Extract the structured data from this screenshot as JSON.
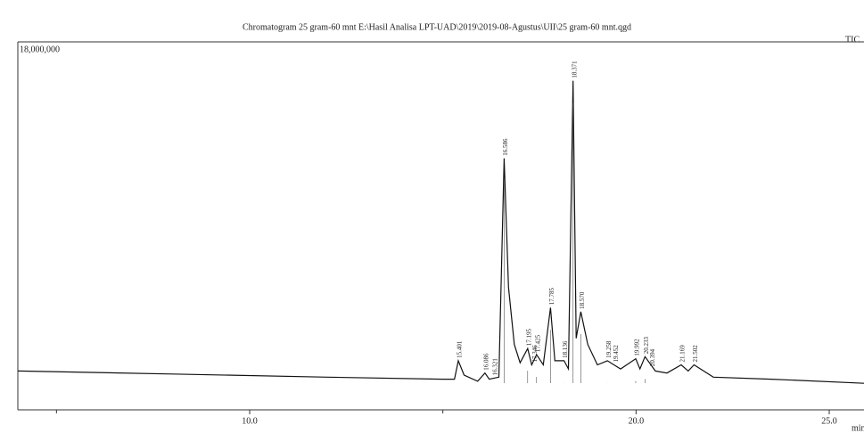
{
  "chart_data": {
    "type": "line",
    "title": "Chromatogram 25 gram-60 mnt E:\\Hasil Analisa LPT-UAD\\2019\\2019-08-Agustus\\UII\\25 gram-60 mnt.qgd",
    "series_label": "TIC",
    "x_label": "min",
    "x": [
      4.0,
      8.0,
      12.0,
      15.0,
      15.3,
      15.4,
      15.55,
      15.9,
      16.09,
      16.2,
      16.45,
      16.586,
      16.7,
      16.85,
      17.0,
      17.195,
      17.3,
      17.425,
      17.6,
      17.785,
      17.9,
      18.136,
      18.25,
      18.371,
      18.45,
      18.57,
      18.75,
      19.0,
      19.258,
      19.6,
      19.992,
      20.1,
      20.233,
      20.5,
      20.8,
      21.169,
      21.35,
      21.502,
      22.0,
      23.5,
      25.9
    ],
    "values": [
      1900000,
      1750000,
      1600000,
      1500000,
      1500000,
      2400000,
      1700000,
      1400000,
      1800000,
      1500000,
      1600000,
      12300000,
      6000000,
      3200000,
      2300000,
      3000000,
      2200000,
      2700000,
      2200000,
      5000000,
      2400000,
      2400000,
      2000000,
      16100000,
      3500000,
      4800000,
      3200000,
      2200000,
      2400000,
      2000000,
      2500000,
      2000000,
      2600000,
      1900000,
      1800000,
      2200000,
      1900000,
      2200000,
      1600000,
      1500000,
      1300000
    ],
    "color": "#111111",
    "peaks": [
      {
        "time": 15.401,
        "label": "15.401",
        "height": 2400000
      },
      {
        "time": 16.086,
        "label": "16.086",
        "height": 1800000
      },
      {
        "time": 16.321,
        "label": "16.321",
        "height": 1550000
      },
      {
        "time": 16.586,
        "label": "16.586",
        "height": 12300000
      },
      {
        "time": 17.195,
        "label": "17.195",
        "height": 3000000
      },
      {
        "time": 17.346,
        "label": "17.346",
        "height": 2200000
      },
      {
        "time": 17.425,
        "label": "17.425",
        "height": 2700000
      },
      {
        "time": 17.785,
        "label": "17.785",
        "height": 5000000
      },
      {
        "time": 18.136,
        "label": "18.136",
        "height": 2400000
      },
      {
        "time": 18.371,
        "label": "18.371",
        "height": 16100000
      },
      {
        "time": 18.57,
        "label": "18.570",
        "height": 4800000
      },
      {
        "time": 19.258,
        "label": "19.258",
        "height": 2400000
      },
      {
        "time": 19.452,
        "label": "19.452",
        "height": 2200000
      },
      {
        "time": 19.992,
        "label": "19.992",
        "height": 2500000
      },
      {
        "time": 20.233,
        "label": "20.233",
        "height": 2600000
      },
      {
        "time": 20.394,
        "label": "20.394",
        "height": 2000000
      },
      {
        "time": 21.169,
        "label": "21.169",
        "height": 2200000
      },
      {
        "time": 21.502,
        "label": "21.502",
        "height": 2200000
      }
    ],
    "xlim": [
      4.0,
      25.9
    ],
    "ylim": [
      0,
      18000000
    ],
    "xticks": [
      {
        "value": 10,
        "label": "10.0"
      },
      {
        "value": 20,
        "label": "20.0"
      },
      {
        "value": 25,
        "label": "25.0"
      }
    ],
    "xminor_ticks": [
      5,
      15
    ],
    "yticks": [
      {
        "value": 18000000,
        "label": "18,000,000"
      }
    ]
  }
}
